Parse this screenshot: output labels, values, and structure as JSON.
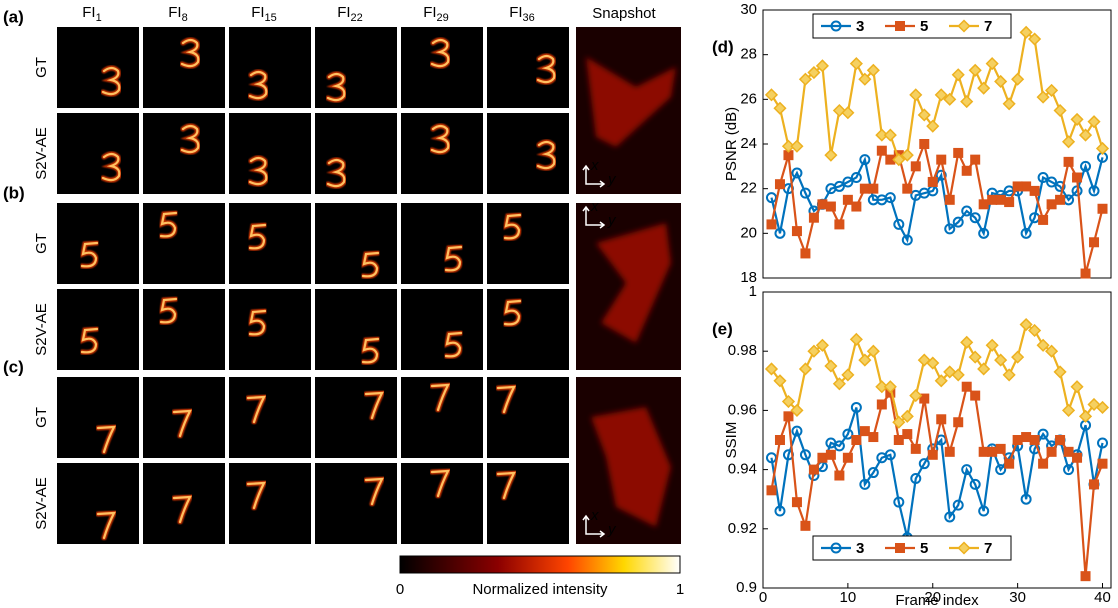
{
  "panels": [
    {
      "label": "(a)",
      "rows": [
        "GT",
        "S2V-AE"
      ]
    },
    {
      "label": "(b)",
      "rows": [
        "GT",
        "S2V-AE"
      ]
    },
    {
      "label": "(c)",
      "rows": [
        "GT",
        "S2V-AE"
      ]
    }
  ],
  "columns": [
    {
      "base": "FI",
      "sub": "1"
    },
    {
      "base": "FI",
      "sub": "8"
    },
    {
      "base": "FI",
      "sub": "15"
    },
    {
      "base": "FI",
      "sub": "22"
    },
    {
      "base": "FI",
      "sub": "29"
    },
    {
      "base": "FI",
      "sub": "36"
    }
  ],
  "snapshot_title": "Snapshot",
  "snapshot_axes": [
    "x",
    "y"
  ],
  "colorbar": {
    "label": "Normalized intensity",
    "min": 0,
    "max": 1
  },
  "chart_data": [
    {
      "type": "line",
      "panel_label": "(d)",
      "ylabel": "PSNR (dB)",
      "x": [
        1,
        2,
        3,
        4,
        5,
        6,
        7,
        8,
        9,
        10,
        11,
        12,
        13,
        14,
        15,
        16,
        17,
        18,
        19,
        20,
        21,
        22,
        23,
        24,
        25,
        26,
        27,
        28,
        29,
        30,
        31,
        32,
        33,
        34,
        35,
        36,
        37,
        38,
        39,
        40
      ],
      "xlim": [
        0,
        41
      ],
      "ylim": [
        18,
        30
      ],
      "yticks": [
        18,
        20,
        22,
        24,
        26,
        28,
        30
      ],
      "legend": "upper center",
      "series": [
        {
          "name": "3",
          "color": "#0072bd",
          "marker": "circle",
          "values": [
            21.6,
            20.0,
            22.0,
            22.7,
            21.8,
            21.0,
            21.3,
            22.0,
            22.1,
            22.3,
            22.5,
            23.3,
            21.5,
            21.5,
            21.6,
            20.4,
            19.7,
            21.7,
            21.8,
            21.9,
            22.6,
            20.2,
            20.5,
            21.0,
            20.7,
            20.0,
            21.8,
            21.7,
            21.9,
            21.9,
            20.0,
            20.7,
            22.5,
            22.3,
            22.1,
            21.5,
            21.9,
            23.0,
            21.9,
            23.4
          ]
        },
        {
          "name": "5",
          "color": "#d95319",
          "marker": "square",
          "values": [
            20.4,
            22.2,
            23.5,
            20.1,
            19.1,
            20.7,
            21.3,
            21.2,
            20.4,
            21.5,
            21.2,
            22.0,
            22.0,
            23.7,
            23.3,
            23.5,
            22.0,
            23.0,
            24.0,
            22.3,
            23.3,
            21.5,
            23.6,
            22.8,
            23.3,
            21.3,
            21.5,
            21.5,
            21.4,
            22.1,
            22.1,
            21.9,
            20.6,
            21.3,
            21.5,
            23.2,
            22.5,
            18.2,
            19.6,
            21.1
          ]
        },
        {
          "name": "7",
          "color": "#edb120",
          "marker": "diamond",
          "values": [
            26.2,
            25.6,
            23.9,
            23.9,
            26.9,
            27.2,
            27.5,
            23.5,
            25.5,
            25.4,
            27.6,
            26.9,
            27.3,
            24.4,
            24.4,
            23.3,
            23.5,
            26.2,
            25.3,
            24.8,
            26.2,
            26.0,
            27.1,
            25.9,
            27.3,
            26.5,
            27.6,
            26.8,
            25.8,
            26.9,
            29.0,
            28.7,
            26.1,
            26.4,
            25.5,
            24.1,
            25.1,
            24.4,
            25.0,
            23.8
          ]
        }
      ]
    },
    {
      "type": "line",
      "panel_label": "(e)",
      "ylabel": "SSIM",
      "xlabel": "Frame index",
      "x": [
        1,
        2,
        3,
        4,
        5,
        6,
        7,
        8,
        9,
        10,
        11,
        12,
        13,
        14,
        15,
        16,
        17,
        18,
        19,
        20,
        21,
        22,
        23,
        24,
        25,
        26,
        27,
        28,
        29,
        30,
        31,
        32,
        33,
        34,
        35,
        36,
        37,
        38,
        39,
        40
      ],
      "xlim": [
        0,
        41
      ],
      "ylim": [
        0.9,
        1
      ],
      "xticks": [
        0,
        10,
        20,
        30,
        40
      ],
      "yticks": [
        0.9,
        0.92,
        0.94,
        0.96,
        0.98,
        1
      ],
      "legend": "lower center",
      "series": [
        {
          "name": "3",
          "color": "#0072bd",
          "marker": "circle",
          "values": [
            0.944,
            0.926,
            0.945,
            0.953,
            0.945,
            0.938,
            0.941,
            0.949,
            0.948,
            0.952,
            0.961,
            0.935,
            0.939,
            0.944,
            0.945,
            0.929,
            0.917,
            0.937,
            0.942,
            0.947,
            0.95,
            0.924,
            0.928,
            0.94,
            0.935,
            0.926,
            0.947,
            0.94,
            0.944,
            0.948,
            0.93,
            0.947,
            0.952,
            0.948,
            0.95,
            0.94,
            0.945,
            0.955,
            0.935,
            0.949
          ]
        },
        {
          "name": "5",
          "color": "#d95319",
          "marker": "square",
          "values": [
            0.933,
            0.95,
            0.958,
            0.929,
            0.921,
            0.94,
            0.944,
            0.945,
            0.938,
            0.944,
            0.95,
            0.953,
            0.951,
            0.962,
            0.966,
            0.95,
            0.952,
            0.947,
            0.964,
            0.945,
            0.957,
            0.946,
            0.956,
            0.968,
            0.965,
            0.946,
            0.946,
            0.947,
            0.942,
            0.95,
            0.951,
            0.95,
            0.942,
            0.946,
            0.95,
            0.946,
            0.944,
            0.904,
            0.935,
            0.942
          ]
        },
        {
          "name": "7",
          "color": "#edb120",
          "marker": "diamond",
          "values": [
            0.974,
            0.97,
            0.963,
            0.96,
            0.974,
            0.98,
            0.982,
            0.975,
            0.969,
            0.972,
            0.984,
            0.977,
            0.98,
            0.968,
            0.968,
            0.956,
            0.958,
            0.965,
            0.977,
            0.976,
            0.97,
            0.973,
            0.972,
            0.983,
            0.978,
            0.974,
            0.982,
            0.977,
            0.972,
            0.978,
            0.989,
            0.987,
            0.982,
            0.98,
            0.973,
            0.96,
            0.968,
            0.958,
            0.962,
            0.961
          ]
        }
      ]
    }
  ]
}
